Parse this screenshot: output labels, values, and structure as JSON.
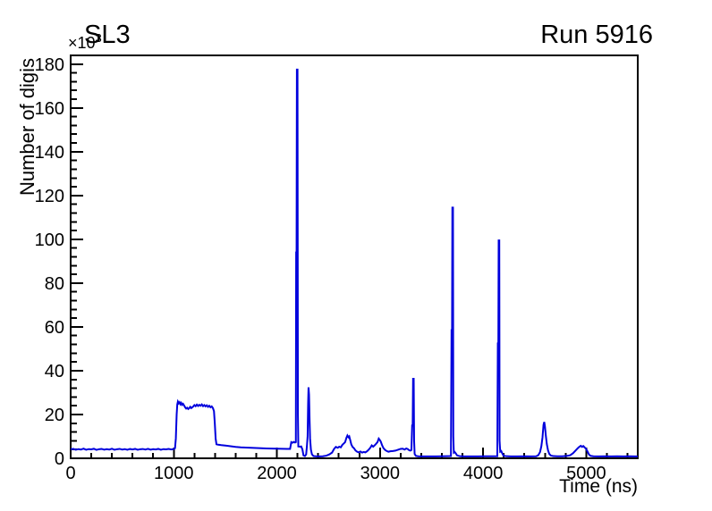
{
  "colors": {
    "background": "#ffffff",
    "axis": "#000000",
    "line": "#0000dd",
    "text": "#000000"
  },
  "axes": {
    "y_exponent_base": "×10",
    "y_exponent_power": "3"
  },
  "chart_data": {
    "type": "line",
    "title": "SL3",
    "annotation": "Run 5916",
    "xlabel": "Time (ns)",
    "ylabel": "Number of digis",
    "y_multiplier": "×10³",
    "xlim": [
      0,
      5500
    ],
    "ylim": [
      0,
      184
    ],
    "x_major_ticks": [
      0,
      1000,
      2000,
      3000,
      4000,
      5000
    ],
    "x_minor_step": 200,
    "y_major_ticks": [
      0,
      20,
      40,
      60,
      80,
      100,
      120,
      140,
      160,
      180
    ],
    "y_minor_step": 4,
    "grid": false,
    "legend_position": "none",
    "series": [
      {
        "name": "digis",
        "color": "#0000dd",
        "points": [
          [
            0,
            4.1
          ],
          [
            25,
            4.3
          ],
          [
            50,
            3.9
          ],
          [
            75,
            4.2
          ],
          [
            100,
            4.0
          ],
          [
            125,
            4.4
          ],
          [
            150,
            3.9
          ],
          [
            175,
            4.2
          ],
          [
            200,
            4.1
          ],
          [
            225,
            4.35
          ],
          [
            250,
            3.85
          ],
          [
            275,
            4.15
          ],
          [
            300,
            4.3
          ],
          [
            325,
            3.95
          ],
          [
            350,
            4.2
          ],
          [
            375,
            4.0
          ],
          [
            400,
            4.35
          ],
          [
            425,
            3.9
          ],
          [
            450,
            4.15
          ],
          [
            475,
            4.3
          ],
          [
            500,
            4.0
          ],
          [
            525,
            4.2
          ],
          [
            550,
            3.9
          ],
          [
            575,
            4.25
          ],
          [
            600,
            4.05
          ],
          [
            625,
            4.3
          ],
          [
            650,
            3.9
          ],
          [
            675,
            4.15
          ],
          [
            700,
            4.25
          ],
          [
            725,
            4.0
          ],
          [
            750,
            4.3
          ],
          [
            775,
            3.95
          ],
          [
            800,
            4.2
          ],
          [
            825,
            4.05
          ],
          [
            850,
            4.3
          ],
          [
            875,
            3.9
          ],
          [
            900,
            4.2
          ],
          [
            925,
            4.1
          ],
          [
            950,
            4.3
          ],
          [
            975,
            4.05
          ],
          [
            1000,
            4.2
          ],
          [
            1012,
            4.6
          ],
          [
            1020,
            9.0
          ],
          [
            1028,
            20.0
          ],
          [
            1034,
            24.6
          ],
          [
            1040,
            25.9
          ],
          [
            1048,
            25.1
          ],
          [
            1056,
            25.6
          ],
          [
            1064,
            24.7
          ],
          [
            1072,
            25.3
          ],
          [
            1080,
            24.4
          ],
          [
            1090,
            24.9
          ],
          [
            1100,
            24.1
          ],
          [
            1110,
            23.3
          ],
          [
            1120,
            22.7
          ],
          [
            1130,
            23.1
          ],
          [
            1140,
            22.5
          ],
          [
            1150,
            22.9
          ],
          [
            1160,
            23.5
          ],
          [
            1170,
            22.9
          ],
          [
            1180,
            23.3
          ],
          [
            1190,
            23.7
          ],
          [
            1200,
            24.3
          ],
          [
            1212,
            23.8
          ],
          [
            1224,
            24.5
          ],
          [
            1236,
            23.9
          ],
          [
            1248,
            24.4
          ],
          [
            1260,
            24.0
          ],
          [
            1272,
            24.6
          ],
          [
            1284,
            23.8
          ],
          [
            1296,
            24.3
          ],
          [
            1308,
            23.7
          ],
          [
            1320,
            24.2
          ],
          [
            1332,
            23.5
          ],
          [
            1344,
            24.0
          ],
          [
            1356,
            23.3
          ],
          [
            1368,
            23.7
          ],
          [
            1380,
            22.9
          ],
          [
            1390,
            21.5
          ],
          [
            1398,
            16.0
          ],
          [
            1406,
            9.0
          ],
          [
            1414,
            6.4
          ],
          [
            1430,
            6.2
          ],
          [
            1460,
            6.0
          ],
          [
            1500,
            5.8
          ],
          [
            1550,
            5.5
          ],
          [
            1600,
            5.2
          ],
          [
            1650,
            5.0
          ],
          [
            1700,
            4.9
          ],
          [
            1750,
            4.8
          ],
          [
            1800,
            4.7
          ],
          [
            1850,
            4.6
          ],
          [
            1900,
            4.5
          ],
          [
            1950,
            4.45
          ],
          [
            2000,
            4.4
          ],
          [
            2050,
            4.35
          ],
          [
            2100,
            4.3
          ],
          [
            2128,
            4.3
          ],
          [
            2140,
            7.4
          ],
          [
            2152,
            7.1
          ],
          [
            2164,
            7.5
          ],
          [
            2176,
            7.2
          ],
          [
            2184,
            7.4
          ],
          [
            2187,
            94.0
          ],
          [
            2191,
            94.0
          ],
          [
            2194,
            177.5
          ],
          [
            2200,
            177.5
          ],
          [
            2204,
            20.0
          ],
          [
            2208,
            5.4
          ],
          [
            2222,
            5.3
          ],
          [
            2236,
            5.4
          ],
          [
            2248,
            4.0
          ],
          [
            2258,
            1.3
          ],
          [
            2272,
            1.0
          ],
          [
            2284,
            1.8
          ],
          [
            2292,
            6.0
          ],
          [
            2298,
            10.0
          ],
          [
            2303,
            25.0
          ],
          [
            2307,
            32.4
          ],
          [
            2312,
            29.0
          ],
          [
            2317,
            18.0
          ],
          [
            2322,
            9.0
          ],
          [
            2330,
            4.0
          ],
          [
            2340,
            1.8
          ],
          [
            2355,
            1.0
          ],
          [
            2380,
            0.9
          ],
          [
            2410,
            0.85
          ],
          [
            2445,
            0.9
          ],
          [
            2480,
            1.2
          ],
          [
            2510,
            1.8
          ],
          [
            2535,
            2.6
          ],
          [
            2555,
            4.3
          ],
          [
            2572,
            5.2
          ],
          [
            2590,
            4.8
          ],
          [
            2605,
            5.3
          ],
          [
            2620,
            5.0
          ],
          [
            2636,
            6.2
          ],
          [
            2650,
            6.8
          ],
          [
            2662,
            7.4
          ],
          [
            2674,
            9.3
          ],
          [
            2684,
            10.4
          ],
          [
            2694,
            9.6
          ],
          [
            2702,
            10.0
          ],
          [
            2712,
            8.2
          ],
          [
            2722,
            6.3
          ],
          [
            2734,
            5.2
          ],
          [
            2748,
            4.6
          ],
          [
            2762,
            3.6
          ],
          [
            2778,
            3.0
          ],
          [
            2794,
            2.7
          ],
          [
            2810,
            3.1
          ],
          [
            2826,
            2.6
          ],
          [
            2842,
            2.9
          ],
          [
            2858,
            2.7
          ],
          [
            2874,
            3.2
          ],
          [
            2890,
            3.9
          ],
          [
            2906,
            4.8
          ],
          [
            2920,
            5.9
          ],
          [
            2934,
            5.3
          ],
          [
            2948,
            5.9
          ],
          [
            2962,
            6.6
          ],
          [
            2976,
            7.4
          ],
          [
            2988,
            9.0
          ],
          [
            2998,
            8.4
          ],
          [
            3008,
            7.6
          ],
          [
            3020,
            6.0
          ],
          [
            3034,
            4.6
          ],
          [
            3050,
            3.8
          ],
          [
            3066,
            3.3
          ],
          [
            3082,
            3.0
          ],
          [
            3100,
            3.2
          ],
          [
            3125,
            3.3
          ],
          [
            3150,
            3.5
          ],
          [
            3175,
            3.9
          ],
          [
            3200,
            4.3
          ],
          [
            3220,
            4.4
          ],
          [
            3238,
            4.0
          ],
          [
            3255,
            4.5
          ],
          [
            3270,
            4.2
          ],
          [
            3283,
            3.7
          ],
          [
            3295,
            3.5
          ],
          [
            3305,
            3.8
          ],
          [
            3312,
            15.0
          ],
          [
            3317,
            15.0
          ],
          [
            3321,
            36.3
          ],
          [
            3327,
            36.3
          ],
          [
            3331,
            8.0
          ],
          [
            3336,
            2.0
          ],
          [
            3348,
            1.1
          ],
          [
            3370,
            0.9
          ],
          [
            3420,
            0.85
          ],
          [
            3480,
            0.85
          ],
          [
            3540,
            0.85
          ],
          [
            3600,
            0.9
          ],
          [
            3650,
            0.95
          ],
          [
            3688,
            1.0
          ],
          [
            3694,
            58.5
          ],
          [
            3699,
            58.5
          ],
          [
            3702,
            114.5
          ],
          [
            3708,
            114.5
          ],
          [
            3711,
            10.0
          ],
          [
            3716,
            2.6
          ],
          [
            3724,
            2.9
          ],
          [
            3734,
            2.3
          ],
          [
            3748,
            1.3
          ],
          [
            3775,
            0.95
          ],
          [
            3820,
            0.85
          ],
          [
            3880,
            0.85
          ],
          [
            3950,
            0.85
          ],
          [
            4020,
            0.9
          ],
          [
            4090,
            0.9
          ],
          [
            4138,
            0.95
          ],
          [
            4143,
            52.5
          ],
          [
            4148,
            52.5
          ],
          [
            4151,
            99.5
          ],
          [
            4157,
            99.5
          ],
          [
            4160,
            8.0
          ],
          [
            4166,
            3.0
          ],
          [
            4176,
            3.3
          ],
          [
            4186,
            2.2
          ],
          [
            4198,
            1.2
          ],
          [
            4225,
            0.95
          ],
          [
            4270,
            0.85
          ],
          [
            4330,
            0.85
          ],
          [
            4400,
            0.9
          ],
          [
            4460,
            0.85
          ],
          [
            4515,
            0.9
          ],
          [
            4535,
            1.4
          ],
          [
            4552,
            2.8
          ],
          [
            4565,
            5.5
          ],
          [
            4576,
            9.5
          ],
          [
            4586,
            15.3
          ],
          [
            4593,
            16.6
          ],
          [
            4600,
            14.5
          ],
          [
            4608,
            10.5
          ],
          [
            4618,
            6.5
          ],
          [
            4630,
            3.6
          ],
          [
            4642,
            2.0
          ],
          [
            4656,
            1.3
          ],
          [
            4680,
            1.0
          ],
          [
            4720,
            0.9
          ],
          [
            4770,
            0.9
          ],
          [
            4815,
            1.1
          ],
          [
            4845,
            1.4
          ],
          [
            4872,
            2.3
          ],
          [
            4898,
            3.6
          ],
          [
            4918,
            4.6
          ],
          [
            4934,
            5.3
          ],
          [
            4948,
            5.7
          ],
          [
            4960,
            5.2
          ],
          [
            4972,
            5.6
          ],
          [
            4984,
            5.0
          ],
          [
            4998,
            4.4
          ],
          [
            5012,
            3.2
          ],
          [
            5026,
            1.8
          ],
          [
            5042,
            1.1
          ],
          [
            5070,
            0.9
          ],
          [
            5120,
            0.85
          ],
          [
            5180,
            0.9
          ],
          [
            5240,
            0.85
          ],
          [
            5300,
            0.9
          ],
          [
            5360,
            0.85
          ],
          [
            5420,
            0.9
          ],
          [
            5470,
            0.85
          ],
          [
            5500,
            0.85
          ]
        ]
      }
    ]
  }
}
